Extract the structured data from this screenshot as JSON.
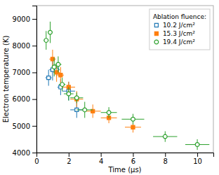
{
  "chart_data": {
    "type": "scatter",
    "xlabel": "Time (μs)",
    "ylabel": "Electron temperature (K)",
    "xlim": [
      0,
      11
    ],
    "ylim": [
      4000,
      9500
    ],
    "xticks": [
      0,
      2,
      4,
      6,
      8,
      10
    ],
    "yticks": [
      4000,
      5000,
      6000,
      7000,
      8000,
      9000
    ],
    "legend": "upper right",
    "legend_title": "Ablation fluence:",
    "series": [
      {
        "name": "10.2 J/cm²",
        "marker": "square-open",
        "x": [
          0.75,
          1.0,
          1.25,
          1.5,
          2.0,
          2.5
        ],
        "values": [
          6800,
          7100,
          7100,
          6450,
          6300,
          5600
        ],
        "xerr": [
          0.2,
          0.2,
          0.2,
          0.2,
          0.4,
          0.4
        ],
        "yerr": [
          300,
          400,
          250,
          300,
          350,
          300
        ]
      },
      {
        "name": "15.3 J/cm²",
        "marker": "square",
        "x": [
          1.0,
          1.25,
          1.5,
          2.0,
          2.5,
          3.5,
          4.5,
          6.0
        ],
        "values": [
          7500,
          7000,
          6900,
          6450,
          6000,
          5550,
          5300,
          4950
        ],
        "xerr": [
          0.2,
          0.2,
          0.2,
          0.4,
          0.4,
          0.5,
          0.5,
          0.5
        ],
        "yerr": [
          350,
          350,
          300,
          200,
          300,
          250,
          200,
          200
        ]
      },
      {
        "name": "19.4 J/cm²",
        "marker": "circle-open",
        "x": [
          0.6,
          0.85,
          1.1,
          1.35,
          1.6,
          2.0,
          2.5,
          3.0,
          4.5,
          6.0,
          8.0,
          10.0
        ],
        "values": [
          8200,
          8500,
          7200,
          7300,
          6550,
          6200,
          6050,
          5600,
          5500,
          5250,
          4600,
          4300
        ],
        "xerr": [
          0.15,
          0.15,
          0.15,
          0.2,
          0.2,
          0.3,
          0.4,
          0.5,
          0.5,
          0.7,
          0.75,
          0.75
        ],
        "yerr": [
          350,
          400,
          350,
          300,
          250,
          250,
          200,
          300,
          200,
          200,
          200,
          200
        ]
      }
    ]
  }
}
